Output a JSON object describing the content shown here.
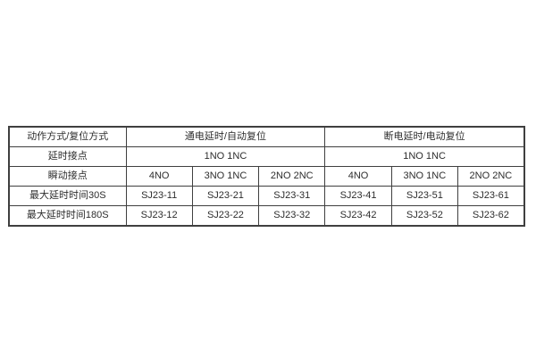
{
  "table": {
    "header": {
      "corner_label": "动作方式/复位方式",
      "group1_label": "通电延时/自动复位",
      "group2_label": "断电延时/电动复位"
    },
    "delay_contact_row": {
      "label": "延时接点",
      "group1_value": "1NO 1NC",
      "group2_value": "1NO 1NC"
    },
    "instant_contact_row": {
      "label": "瞬动接点",
      "cells": [
        "4NO",
        "3NO 1NC",
        "2NO 2NC",
        "4NO",
        "3NO 1NC",
        "2NO 2NC"
      ]
    },
    "max_delay_30s_row": {
      "label": "最大延时时间30S",
      "cells": [
        "SJ23-11",
        "SJ23-21",
        "SJ23-31",
        "SJ23-41",
        "SJ23-51",
        "SJ23-61"
      ]
    },
    "max_delay_180s_row": {
      "label": "最大延时时间180S",
      "cells": [
        "SJ23-12",
        "SJ23-22",
        "SJ23-32",
        "SJ23-42",
        "SJ23-52",
        "SJ23-62"
      ]
    }
  },
  "colors": {
    "border": "#3f3f3f",
    "text": "#2d2d2d",
    "background": "#ffffff"
  }
}
